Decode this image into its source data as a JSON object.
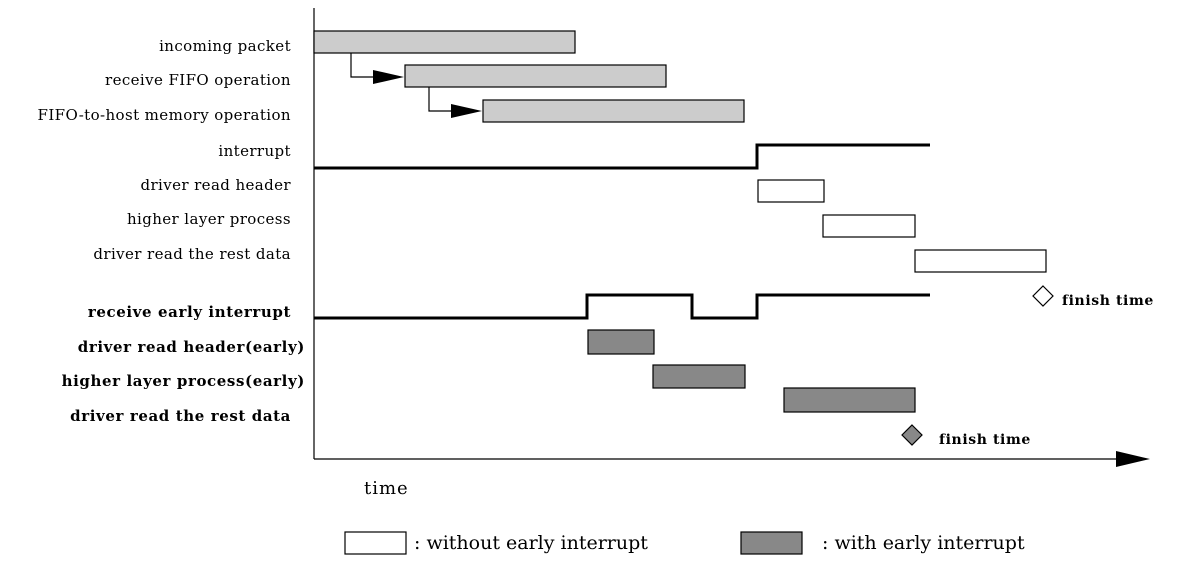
{
  "rows_top": [
    "incoming packet",
    "receive FIFO operation",
    "FIFO-to-host memory operation",
    "interrupt",
    "driver read header",
    "higher layer process",
    "driver read the rest data"
  ],
  "rows_bottom": [
    "receive early interrupt",
    "driver read header(early)",
    "higher layer process(early)",
    "driver read the rest data"
  ],
  "finish_label": "finish time",
  "x_axis_label": "time",
  "legend": {
    "without": ": without early interrupt",
    "with": ": with early interrupt"
  },
  "colors": {
    "light_gray": "#cccccc",
    "dark_gray": "#888888",
    "white": "#ffffff",
    "line": "#000000"
  }
}
